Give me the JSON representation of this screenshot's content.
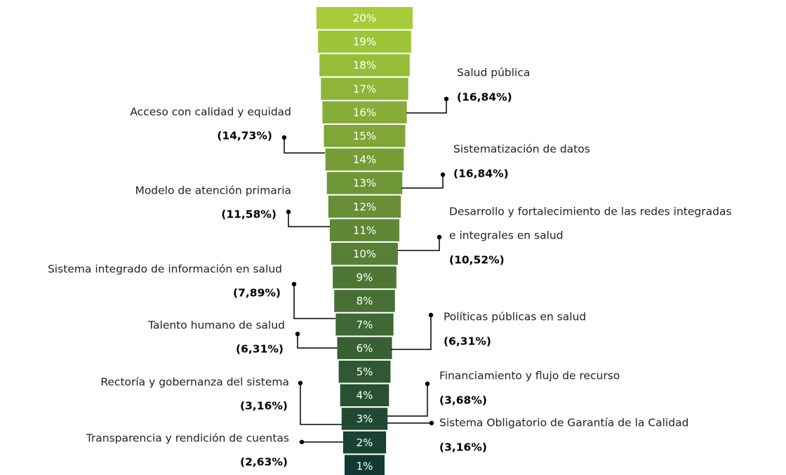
{
  "funnel": {
    "levels": [
      "20%",
      "19%",
      "18%",
      "17%",
      "16%",
      "15%",
      "14%",
      "13%",
      "12%",
      "11%",
      "10%",
      "9%",
      "8%",
      "7%",
      "6%",
      "5%",
      "4%",
      "3%",
      "2%",
      "1%"
    ],
    "colors": [
      "#a6cc39",
      "#103a31"
    ]
  },
  "callouts": [
    {
      "label": [
        "Acceso con calidad y equidad"
      ],
      "value": "(14,73%)"
    },
    {
      "label": [
        "Modelo de atención primaria"
      ],
      "value": "(11,58%)"
    },
    {
      "label": [
        "Sistema integrado de información en salud"
      ],
      "value": "(7,89%)"
    },
    {
      "label": [
        "Talento humano de salud"
      ],
      "value": "(6,31%)"
    },
    {
      "label": [
        "Rectoría y gobernanza del sistema"
      ],
      "value": "(3,16%)"
    },
    {
      "label": [
        "Transparencia y rendición de cuentas"
      ],
      "value": "(2,63%)"
    },
    {
      "label": [
        "Salud pública"
      ],
      "value": "(16,84%)"
    },
    {
      "label": [
        "Sistematización de datos"
      ],
      "value": "(16,84%)"
    },
    {
      "label": [
        "Desarrollo y fortalecimiento de las redes integradas",
        "e integrales en salud"
      ],
      "value": "(10,52%)"
    },
    {
      "label": [
        "Políticas públicas en salud"
      ],
      "value": "(6,31%)"
    },
    {
      "label": [
        "Financiamiento y flujo de recurso"
      ],
      "value": "(3,68%)"
    },
    {
      "label": [
        "Sistema Obligatorio de Garantía de la Calidad"
      ],
      "value": "(3,16%)"
    }
  ]
}
